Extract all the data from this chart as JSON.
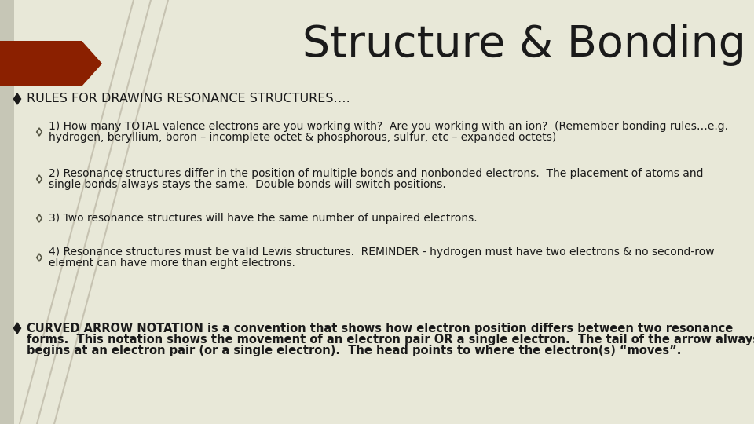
{
  "title": "Structure & Bonding",
  "title_fontsize": 40,
  "title_color": "#1a1a1a",
  "bg_color": "#e8e8d8",
  "red_arrow_color": "#8B2000",
  "bullet1_text": "RULES FOR DRAWING RESONANCE STRUCTURES….",
  "bullet1_fontsize": 11.5,
  "sub1_line1": "1) How many TOTAL valence electrons are you working with?  Are you working with an ion?  (Remember bonding rules…e.g.",
  "sub1_line2": "hydrogen, beryllium, boron – incomplete octet & phosphorous, sulfur, etc – expanded octets)",
  "sub2_line1": "2) Resonance structures differ in the position of multiple bonds and nonbonded electrons.  The placement of atoms and",
  "sub2_line2": "single bonds always stays the same.  Double bonds will switch positions.",
  "sub3_line1": "3) Two resonance structures will have the same number of unpaired electrons.",
  "sub4_line1": "4) Resonance structures must be valid Lewis structures.  REMINDER - hydrogen must have two electrons & no second-row",
  "sub4_line2": "element can have more than eight electrons.",
  "bullet2_line1": "CURVED ARROW NOTATION is a convention that shows how electron position differs between two resonance",
  "bullet2_line2": "forms.  This notation shows the movement of an electron pair OR a single electron.  The tail of the arrow always",
  "bullet2_line3": "begins at an electron pair (or a single electron).  The head points to where the electron(s) “moves”.",
  "sub_fontsize": 10.0,
  "bullet2_fontsize": 10.5
}
